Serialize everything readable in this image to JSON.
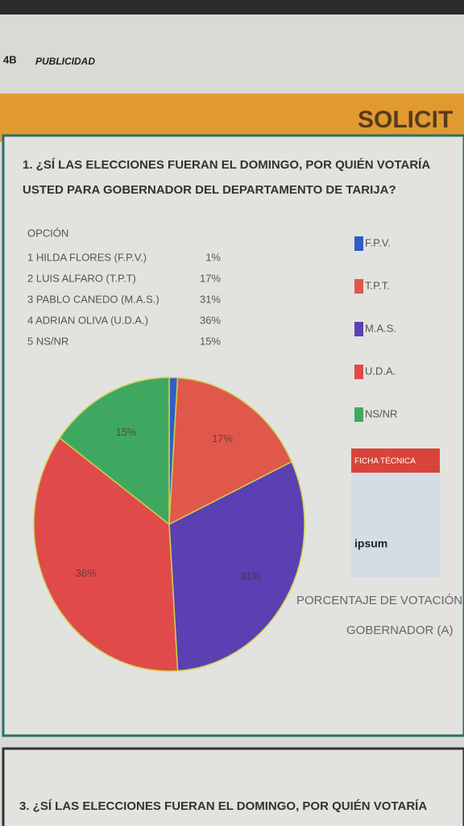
{
  "page": {
    "section_number": "4B",
    "section": "PUBLICIDAD",
    "banner": "SOLICIT",
    "question": [
      "1. ¿SÍ LAS ELECCIONES FUERAN EL DOMINGO, POR QUIÉN VOTARÍA",
      "USTED PARA GOBERNADOR DEL DEPARTAMENTO DE TARIJA?"
    ],
    "table_header": "OPCIÓN",
    "options": [
      "1 HILDA FLORES (F.P.V.)",
      "2 LUIS ALFARO (T.P.T)",
      "3 PABLO CANEDO (M.A.S.)",
      "4 ADRIAN OLIVA (U.D.A.)",
      "5 NS/NR"
    ],
    "ficha_title": "FICHA TÉCNICA",
    "ficha_brand": "ipsum",
    "caption": [
      "PORCENTAJE DE VOTACIÓN",
      "GOBERNADOR (A)"
    ],
    "next_question": "3. ¿SÍ LAS ELECCIONES FUERAN EL DOMINGO, POR QUIÉN VOTARÍA"
  },
  "chart_data": {
    "type": "pie",
    "categories": [
      "F.P.V.",
      "T.P.T.",
      "M.A.S.",
      "U.D.A.",
      "NS/NR"
    ],
    "values": [
      1,
      17,
      31,
      36,
      15
    ],
    "value_labels": [
      "1%",
      "17%",
      "31%",
      "36%",
      "15%"
    ],
    "colors": [
      "#2f5fc4",
      "#e0584c",
      "#5a40b2",
      "#e04a4a",
      "#3fa860"
    ]
  }
}
